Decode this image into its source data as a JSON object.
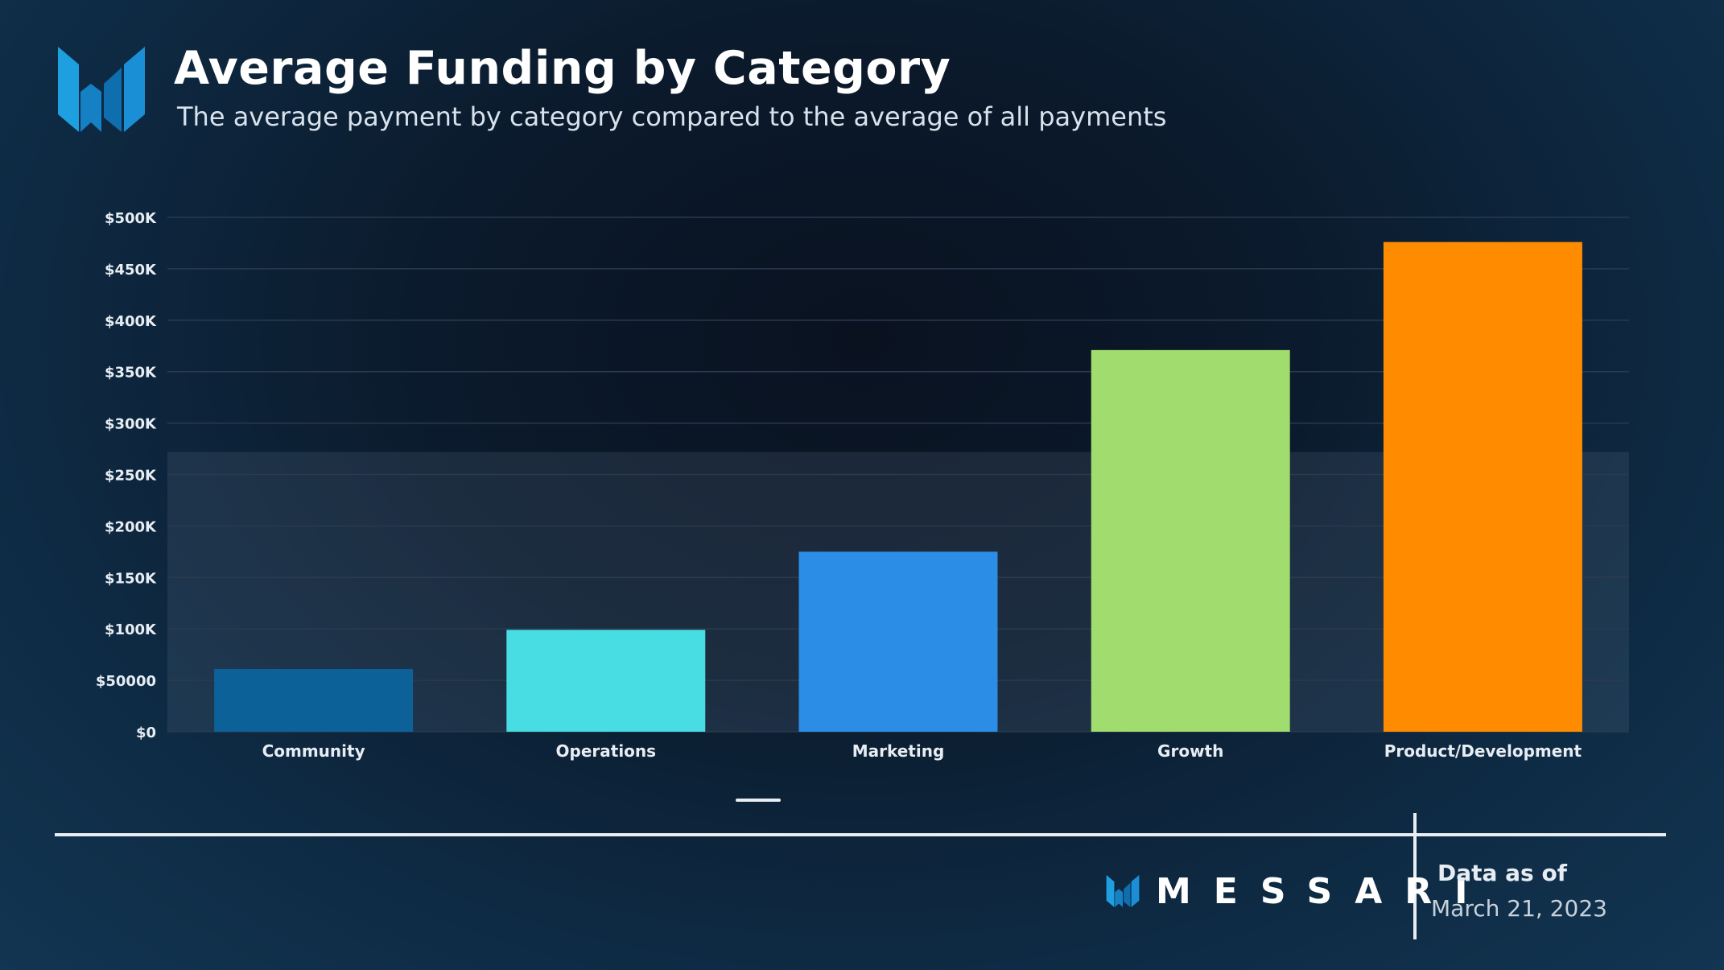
{
  "header": {
    "title": "Average Funding by Category",
    "subtitle": "The average payment by category compared to the average of all payments"
  },
  "footer": {
    "brand": "MESSARI",
    "asof_label": "Data as of",
    "asof_date": "March 21, 2023"
  },
  "icons": {
    "header_logo": "messari-logo-icon",
    "footer_logo": "messari-logo-icon"
  },
  "colors": {
    "grid": "#2b3a4c",
    "average_band": "#5b6f85"
  },
  "chart_data": {
    "type": "bar",
    "title": "Average Funding by Category",
    "subtitle": "The average payment by category compared to the average of all payments",
    "categories": [
      "Community",
      "Operations",
      "Marketing",
      "Growth",
      "Product/Development"
    ],
    "values": [
      61000,
      99000,
      175000,
      371000,
      476000
    ],
    "colors": [
      "#0d6199",
      "#47dde3",
      "#2b8de6",
      "#a1dc6e",
      "#ff8c00"
    ],
    "ylim": [
      0,
      500000
    ],
    "yticks": [
      {
        "value": 0,
        "label": "$0"
      },
      {
        "value": 50000,
        "label": "$50000"
      },
      {
        "value": 100000,
        "label": "$100K"
      },
      {
        "value": 150000,
        "label": "$150K"
      },
      {
        "value": 200000,
        "label": "$200K"
      },
      {
        "value": 250000,
        "label": "$250K"
      },
      {
        "value": 300000,
        "label": "$300K"
      },
      {
        "value": 350000,
        "label": "$350K"
      },
      {
        "value": 400000,
        "label": "$400K"
      },
      {
        "value": 450000,
        "label": "$450K"
      },
      {
        "value": 500000,
        "label": "$500K"
      }
    ],
    "average_all_payments": 272000,
    "grid": true,
    "xlabel": "",
    "ylabel": ""
  }
}
